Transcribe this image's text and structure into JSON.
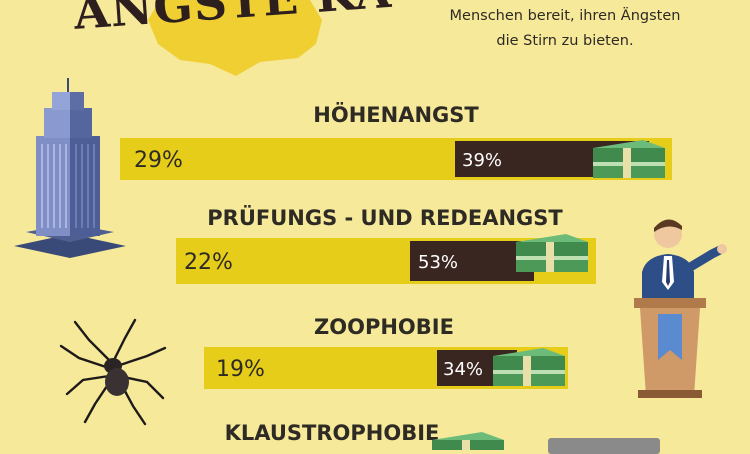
{
  "header": {
    "title_fragment": "ÄNGSTE KA",
    "intro_lines": [
      "Menschen bereit, ihren Ängsten",
      "die Stirn zu bieten."
    ]
  },
  "colors": {
    "background": "#f6e99a",
    "bar_yellow": "#e6cd1a",
    "bar_dark": "#3a2620",
    "text_dark": "#2e2a24",
    "money_green": "#3f8a4c"
  },
  "icons": [
    "skyscraper-icon",
    "spider-icon",
    "speaker-at-podium-icon",
    "money-stack-icon"
  ],
  "chart_data": {
    "type": "bar",
    "categories": [
      "HÖHENANGST",
      "PRÜFUNGS - UND REDEANGST",
      "ZOOPHOBIE",
      "KLAUSTROPHOBIE"
    ],
    "series": [
      {
        "values": [
          29,
          22,
          19,
          null
        ],
        "labels": [
          "29%",
          "22%",
          "19%",
          ""
        ]
      },
      {
        "values": [
          39,
          53,
          34,
          null
        ],
        "labels": [
          "39%",
          "53%",
          "34%",
          ""
        ]
      }
    ],
    "xlabel": "",
    "ylabel": ""
  }
}
